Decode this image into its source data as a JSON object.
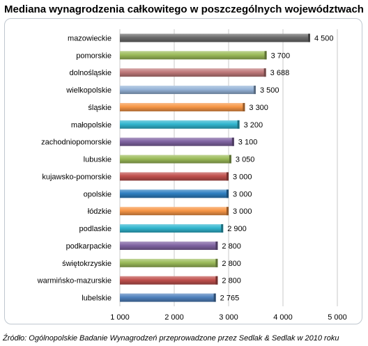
{
  "title": "Mediana wynagrodzenia całkowitego w poszczególnych województwach",
  "source": "Źródło: Ogólnopolskie Badanie Wynagrodzeń przeprowadzone przez Sedlak & Sedlak w 2010 roku",
  "chart_data": {
    "type": "bar",
    "orientation": "horizontal",
    "title": "Mediana wynagrodzenia całkowitego w poszczególnych województwach",
    "xlim": [
      1000,
      5000
    ],
    "xticks": [
      1000,
      2000,
      3000,
      4000,
      5000
    ],
    "xtick_labels": [
      "1 000",
      "2 000",
      "3 000",
      "4 000",
      "5 000"
    ],
    "grid": true,
    "categories": [
      "mazowieckie",
      "pomorskie",
      "dolnośląskie",
      "wielkopolskie",
      "śląskie",
      "małopolskie",
      "zachodniopomorskie",
      "lubuskie",
      "kujawsko-pomorskie",
      "opolskie",
      "łódzkie",
      "podlaskie",
      "podkarpackie",
      "świętokrzyskie",
      "warmińsko-mazurskie",
      "lubelskie"
    ],
    "values": [
      4500,
      3700,
      3688,
      3500,
      3300,
      3200,
      3100,
      3050,
      3000,
      3000,
      3000,
      2900,
      2800,
      2800,
      2800,
      2765
    ],
    "value_labels": [
      "4 500",
      "3 700",
      "3 688",
      "3 500",
      "3 300",
      "3 200",
      "3 100",
      "3 050",
      "3 000",
      "3 000",
      "3 000",
      "2 900",
      "2 800",
      "2 800",
      "2 800",
      "2 765"
    ],
    "colors": [
      "#6b6b6b",
      "#9bbb59",
      "#c0797a",
      "#95b3d7",
      "#f79646",
      "#31b6cf",
      "#8064a2",
      "#9bbb59",
      "#c0504d",
      "#2f7fc1",
      "#f79646",
      "#31b6cf",
      "#8064a2",
      "#9bbb59",
      "#c0504d",
      "#4f81bd"
    ]
  }
}
